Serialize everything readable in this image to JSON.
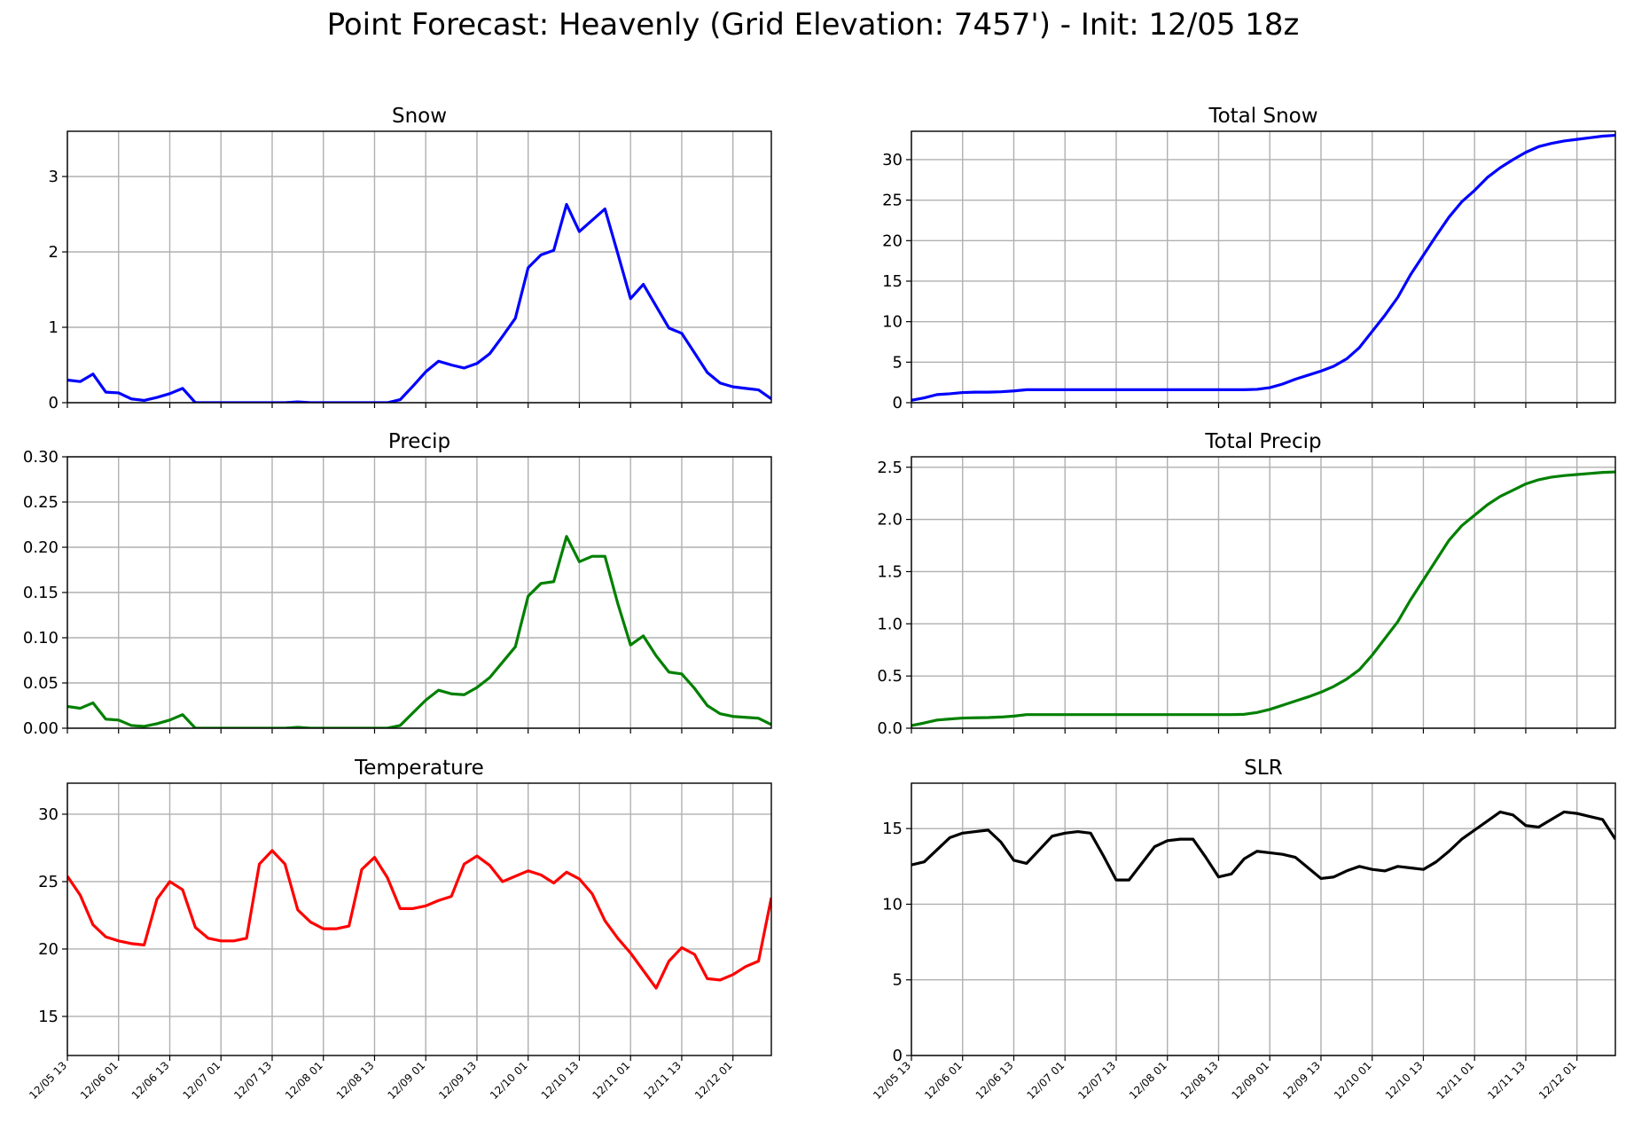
{
  "figure": {
    "title": "Point Forecast: Heavenly (Grid Elevation: 7457') - Init: 12/05 18z",
    "tick_labels": [
      "12/05 13",
      "12/06 01",
      "12/06 13",
      "12/07 01",
      "12/07 13",
      "12/08 01",
      "12/08 13",
      "12/09 01",
      "12/09 13",
      "12/10 01",
      "12/10 13",
      "12/11 01",
      "12/11 13",
      "12/12 01"
    ]
  },
  "chart_data": [
    {
      "type": "line",
      "title": "Snow",
      "color": "#0000ff",
      "xlim": [
        0,
        55
      ],
      "x_ticks": [
        0,
        4,
        8,
        12,
        16,
        20,
        24,
        28,
        32,
        36,
        40,
        44,
        48,
        52
      ],
      "ylim": [
        0,
        3.6
      ],
      "yticks": [
        0,
        1,
        2,
        3
      ],
      "ytick_labels": [
        "0",
        "1",
        "2",
        "3"
      ],
      "show_xtick_labels": false,
      "grid": true,
      "values": [
        0.3,
        0.28,
        0.38,
        0.14,
        0.13,
        0.05,
        0.03,
        0.07,
        0.12,
        0.19,
        0.0,
        0.0,
        0.0,
        0.0,
        0.0,
        0.0,
        0.0,
        0.0,
        0.01,
        0.0,
        0.0,
        0.0,
        0.0,
        0.0,
        0.0,
        0.0,
        0.04,
        0.22,
        0.41,
        0.55,
        0.5,
        0.46,
        0.52,
        0.65,
        0.88,
        1.12,
        1.79,
        1.96,
        2.02,
        2.63,
        2.27,
        2.42,
        2.57,
        1.98,
        1.38,
        1.57,
        1.28,
        0.99,
        0.92,
        0.66,
        0.4,
        0.26,
        0.21,
        0.19,
        0.17,
        0.05
      ]
    },
    {
      "type": "line",
      "title": "Total Snow",
      "color": "#0000ff",
      "xlim": [
        0,
        55
      ],
      "x_ticks": [
        0,
        4,
        8,
        12,
        16,
        20,
        24,
        28,
        32,
        36,
        40,
        44,
        48,
        52
      ],
      "ylim": [
        0,
        33.5
      ],
      "yticks": [
        0,
        5,
        10,
        15,
        20,
        25,
        30
      ],
      "ytick_labels": [
        "0",
        "5",
        "10",
        "15",
        "20",
        "25",
        "30"
      ],
      "show_xtick_labels": false,
      "grid": true,
      "values": [
        0.3,
        0.6,
        1.0,
        1.1,
        1.25,
        1.3,
        1.3,
        1.35,
        1.45,
        1.6,
        1.6,
        1.6,
        1.6,
        1.6,
        1.6,
        1.6,
        1.6,
        1.6,
        1.6,
        1.6,
        1.6,
        1.6,
        1.6,
        1.6,
        1.6,
        1.6,
        1.6,
        1.65,
        1.85,
        2.3,
        2.9,
        3.4,
        3.9,
        4.5,
        5.4,
        6.8,
        8.8,
        10.8,
        13.0,
        15.8,
        18.2,
        20.6,
        22.9,
        24.8,
        26.2,
        27.8,
        29.0,
        30.0,
        30.9,
        31.6,
        32.0,
        32.3,
        32.5,
        32.7,
        32.9,
        33.0
      ]
    },
    {
      "type": "line",
      "title": "Precip",
      "color": "#008000",
      "xlim": [
        0,
        55
      ],
      "x_ticks": [
        0,
        4,
        8,
        12,
        16,
        20,
        24,
        28,
        32,
        36,
        40,
        44,
        48,
        52
      ],
      "ylim": [
        0,
        0.3
      ],
      "yticks": [
        0,
        0.05,
        0.1,
        0.15,
        0.2,
        0.25,
        0.3
      ],
      "ytick_labels": [
        "0.00",
        "0.05",
        "0.10",
        "0.15",
        "0.20",
        "0.25",
        "0.30"
      ],
      "show_xtick_labels": false,
      "grid": true,
      "values": [
        0.024,
        0.022,
        0.028,
        0.01,
        0.009,
        0.003,
        0.002,
        0.005,
        0.009,
        0.015,
        0.0,
        0.0,
        0.0,
        0.0,
        0.0,
        0.0,
        0.0,
        0.0,
        0.001,
        0.0,
        0.0,
        0.0,
        0.0,
        0.0,
        0.0,
        0.0,
        0.003,
        0.017,
        0.031,
        0.042,
        0.038,
        0.037,
        0.045,
        0.056,
        0.073,
        0.09,
        0.146,
        0.16,
        0.162,
        0.212,
        0.184,
        0.19,
        0.19,
        0.138,
        0.092,
        0.102,
        0.08,
        0.062,
        0.06,
        0.044,
        0.025,
        0.016,
        0.013,
        0.012,
        0.011,
        0.004
      ]
    },
    {
      "type": "line",
      "title": "Total Precip",
      "color": "#008000",
      "xlim": [
        0,
        55
      ],
      "x_ticks": [
        0,
        4,
        8,
        12,
        16,
        20,
        24,
        28,
        32,
        36,
        40,
        44,
        48,
        52
      ],
      "ylim": [
        0,
        2.6
      ],
      "yticks": [
        0,
        0.5,
        1.0,
        1.5,
        2.0,
        2.5
      ],
      "ytick_labels": [
        "0.0",
        "0.5",
        "1.0",
        "1.5",
        "2.0",
        "2.5"
      ],
      "show_xtick_labels": false,
      "grid": true,
      "values": [
        0.025,
        0.05,
        0.078,
        0.088,
        0.097,
        0.1,
        0.102,
        0.107,
        0.116,
        0.13,
        0.13,
        0.13,
        0.13,
        0.13,
        0.13,
        0.13,
        0.13,
        0.13,
        0.13,
        0.13,
        0.13,
        0.13,
        0.13,
        0.13,
        0.13,
        0.13,
        0.133,
        0.15,
        0.18,
        0.22,
        0.26,
        0.3,
        0.345,
        0.4,
        0.47,
        0.56,
        0.7,
        0.86,
        1.02,
        1.23,
        1.42,
        1.61,
        1.8,
        1.94,
        2.04,
        2.14,
        2.22,
        2.28,
        2.34,
        2.38,
        2.405,
        2.42,
        2.43,
        2.44,
        2.45,
        2.455
      ]
    },
    {
      "type": "line",
      "title": "Temperature",
      "color": "#ff0000",
      "xlim": [
        0,
        55
      ],
      "x_ticks": [
        0,
        4,
        8,
        12,
        16,
        20,
        24,
        28,
        32,
        36,
        40,
        44,
        48,
        52
      ],
      "ylim": [
        12.1,
        32.3
      ],
      "yticks": [
        15,
        20,
        25,
        30
      ],
      "ytick_labels": [
        "15",
        "20",
        "25",
        "30"
      ],
      "show_xtick_labels": true,
      "grid": true,
      "values": [
        25.4,
        24.0,
        21.8,
        20.9,
        20.6,
        20.4,
        20.3,
        23.7,
        25.0,
        24.4,
        21.6,
        20.8,
        20.6,
        20.6,
        20.8,
        26.3,
        27.3,
        26.3,
        22.9,
        22.0,
        21.5,
        21.5,
        21.7,
        25.9,
        26.8,
        25.3,
        23.0,
        23.0,
        23.2,
        23.6,
        23.9,
        26.3,
        26.9,
        26.2,
        25.0,
        25.4,
        25.8,
        25.5,
        24.9,
        25.7,
        25.2,
        24.1,
        22.1,
        20.8,
        19.7,
        18.4,
        17.1,
        19.1,
        20.1,
        19.6,
        17.8,
        17.7,
        18.1,
        18.7,
        19.1,
        23.8
      ]
    },
    {
      "type": "line",
      "title": "SLR",
      "color": "#000000",
      "xlim": [
        0,
        55
      ],
      "x_ticks": [
        0,
        4,
        8,
        12,
        16,
        20,
        24,
        28,
        32,
        36,
        40,
        44,
        48,
        52
      ],
      "ylim": [
        0,
        18.0
      ],
      "yticks": [
        0,
        5,
        10,
        15
      ],
      "ytick_labels": [
        "0",
        "5",
        "10",
        "15"
      ],
      "show_xtick_labels": true,
      "grid": true,
      "values": [
        12.6,
        12.8,
        13.6,
        14.4,
        14.7,
        14.8,
        14.9,
        14.1,
        12.9,
        12.7,
        13.6,
        14.5,
        14.7,
        14.8,
        14.7,
        13.2,
        11.6,
        11.6,
        12.7,
        13.8,
        14.2,
        14.3,
        14.3,
        13.1,
        11.8,
        12.0,
        13.0,
        13.5,
        13.4,
        13.3,
        13.1,
        12.4,
        11.7,
        11.8,
        12.2,
        12.5,
        12.3,
        12.2,
        12.5,
        12.4,
        12.3,
        12.8,
        13.5,
        14.3,
        14.9,
        15.5,
        16.1,
        15.9,
        15.2,
        15.1,
        15.6,
        16.1,
        16.0,
        15.8,
        15.6,
        14.3
      ]
    }
  ]
}
